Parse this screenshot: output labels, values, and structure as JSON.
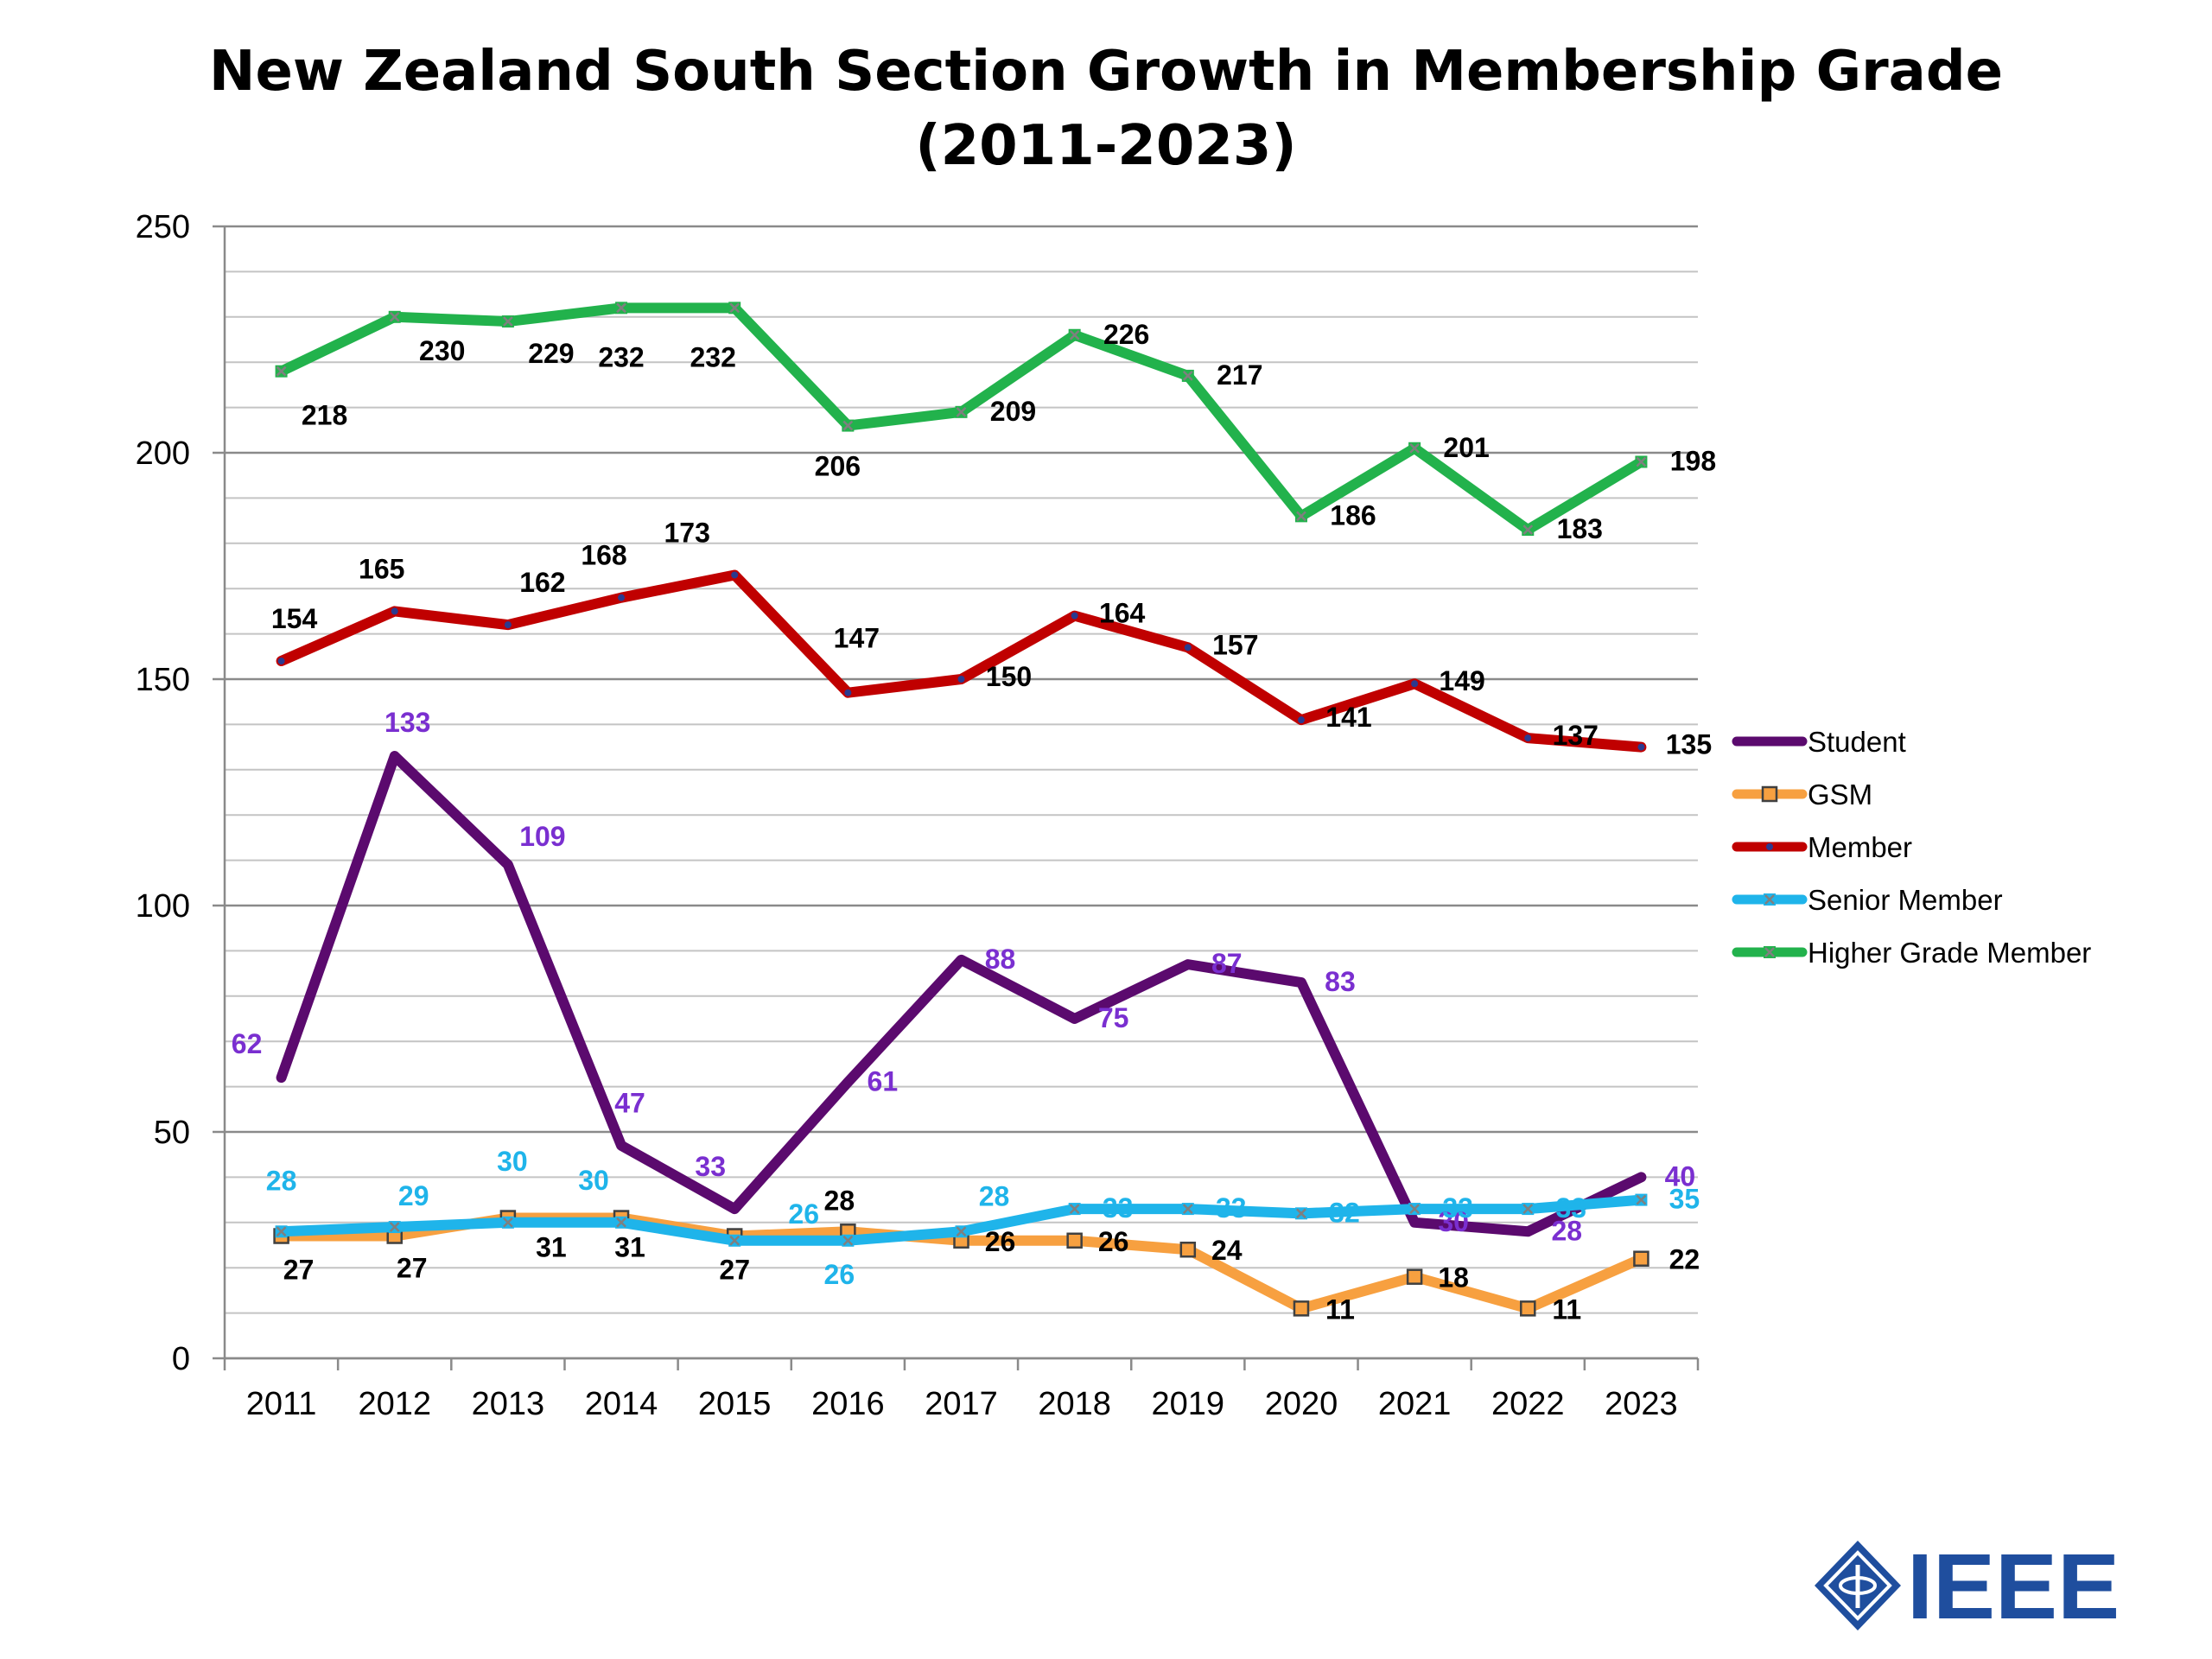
{
  "chart_data": {
    "type": "line",
    "title_line1": "New Zealand South Section Growth in Membership Grade",
    "title_line2": "(2011-2023)",
    "categories": [
      "2011",
      "2012",
      "2013",
      "2014",
      "2015",
      "2016",
      "2017",
      "2018",
      "2019",
      "2020",
      "2021",
      "2022",
      "2023"
    ],
    "ylim": [
      0,
      250
    ],
    "yticks": [
      0,
      50,
      100,
      150,
      200,
      250
    ],
    "grid": true,
    "legend_position": "right",
    "series": [
      {
        "name": "Student",
        "color": "#5b0a6e",
        "label_color": "#7a2fd0",
        "marker": "none",
        "values": [
          62,
          133,
          109,
          47,
          33,
          61,
          88,
          75,
          87,
          83,
          30,
          28,
          40
        ],
        "labels": [
          "62",
          "133",
          "109",
          "47",
          "33",
          "61",
          "88",
          "75",
          "87",
          "83",
          "30",
          "28",
          "40"
        ]
      },
      {
        "name": "GSM",
        "color": "#f7a040",
        "label_color": "#000000",
        "marker": "square",
        "values": [
          27,
          27,
          31,
          31,
          27,
          28,
          26,
          26,
          24,
          11,
          18,
          11,
          22
        ],
        "labels": [
          "27",
          "27",
          "31",
          "31",
          "27",
          "28",
          "26",
          "26",
          "24",
          "11",
          "18",
          "11",
          "22"
        ]
      },
      {
        "name": "Member",
        "color": "#c00000",
        "label_color": "#000000",
        "marker": "dot",
        "values": [
          154,
          165,
          162,
          168,
          173,
          147,
          150,
          164,
          157,
          141,
          149,
          137,
          135
        ],
        "labels": [
          "154",
          "165",
          "162",
          "168",
          "173",
          "147",
          "150",
          "164",
          "157",
          "141",
          "149",
          "137",
          "135"
        ]
      },
      {
        "name": "Senior Member",
        "color": "#1fb4ea",
        "label_color": "#1fb4ea",
        "marker": "x",
        "values": [
          28,
          29,
          30,
          30,
          26,
          26,
          28,
          33,
          33,
          32,
          33,
          33,
          35
        ],
        "labels": [
          "28",
          "29",
          "30",
          "30",
          "26",
          "26",
          "28",
          "33",
          "33",
          "32",
          "33",
          "33",
          "35"
        ]
      },
      {
        "name": "Higher Grade Member",
        "color": "#22b24c",
        "label_color": "#000000",
        "marker": "x",
        "values": [
          218,
          230,
          229,
          232,
          232,
          206,
          209,
          226,
          217,
          186,
          201,
          183,
          198
        ],
        "labels": [
          "218",
          "230",
          "229",
          "232",
          "232",
          "206",
          "209",
          "226",
          "217",
          "186",
          "201",
          "183",
          "198"
        ]
      }
    ]
  },
  "logo": {
    "text": "IEEE",
    "color": "#1f4e9e"
  }
}
